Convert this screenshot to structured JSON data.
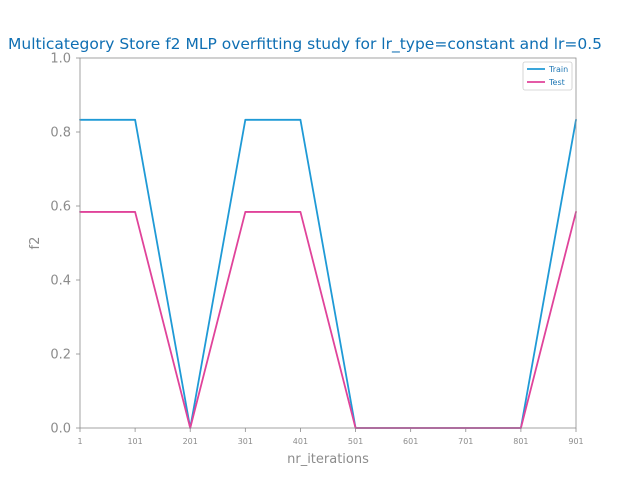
{
  "chart_data": {
    "type": "line",
    "title": "Multicategory Store f2 MLP overfitting study for lr_type=constant and lr=0.5",
    "xlabel": "nr_iterations",
    "ylabel": "f2",
    "x": [
      1,
      101,
      201,
      301,
      401,
      501,
      601,
      701,
      801,
      901
    ],
    "ylim": [
      0.0,
      1.0
    ],
    "yticks": [
      0.0,
      0.2,
      0.4,
      0.6,
      0.8,
      1.0
    ],
    "ytick_labels": [
      "0.0",
      "0.2",
      "0.4",
      "0.6",
      "0.8",
      "1.0"
    ],
    "xtick_labels": [
      "1",
      "101",
      "201",
      "301",
      "401",
      "501",
      "601",
      "701",
      "801",
      "901"
    ],
    "grid": false,
    "legend_position": "top-right",
    "series": [
      {
        "name": "Train",
        "color": "#1f9ad6",
        "values": [
          0.833,
          0.833,
          0.0,
          0.833,
          0.833,
          0.0,
          0.0,
          0.0,
          0.0,
          0.833
        ]
      },
      {
        "name": "Test",
        "color": "#e0439a",
        "values": [
          0.584,
          0.584,
          0.0,
          0.584,
          0.584,
          0.0,
          0.0,
          0.0,
          0.0,
          0.584
        ]
      }
    ],
    "colors": {
      "title": "#0f6fb3",
      "axis_text": "#8c8c8c",
      "axis_line": "#8c8c8c",
      "legend_text": "#1f77b4"
    }
  }
}
